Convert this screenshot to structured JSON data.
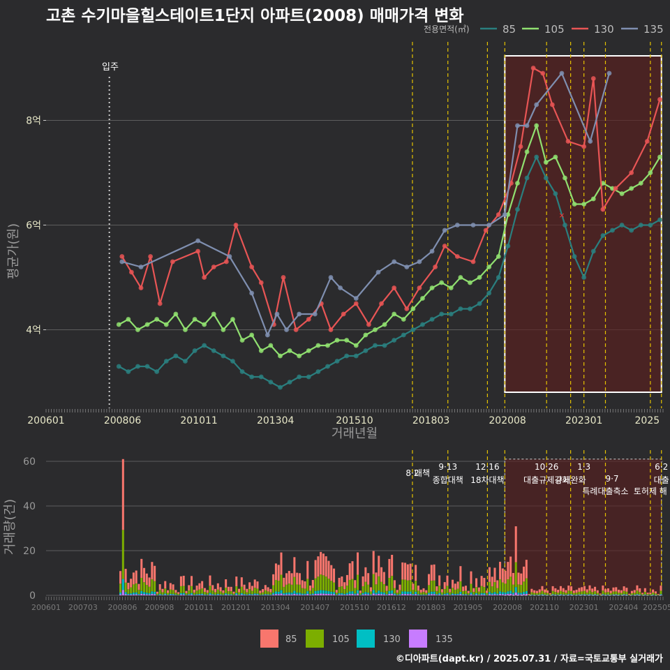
{
  "title": "고촌 수기마을힐스테이트1단지 아파트(2008) 매매가격 변화",
  "footer": "©디아파트(dapt.kr) / 2025.07.31 / 자료=국토교통부 실거래가",
  "legend": {
    "title": "전용면적(㎡)",
    "items": [
      {
        "name": "85",
        "color": "#2a7f7f",
        "bar_color": "#f8766d"
      },
      {
        "name": "105",
        "color": "#90e070",
        "bar_color": "#7cae00"
      },
      {
        "name": "130",
        "color": "#e85555",
        "bar_color": "#00bfc4"
      },
      {
        "name": "135",
        "color": "#7f8fb0",
        "bar_color": "#c77cff"
      }
    ]
  },
  "movein_label": "입주",
  "policies": [
    {
      "date": "2017.58",
      "date_label": "8·2",
      "name": "대책"
    },
    {
      "date": "2018.70",
      "date_label": "9·13",
      "name": "종합대책"
    },
    {
      "date": "2019.95",
      "date_label": "12·16",
      "name": "18차대책"
    },
    {
      "date": "2020.50",
      "date_label": "",
      "name": ""
    },
    {
      "date": "2021.82",
      "date_label": "10·26",
      "name": "대출규제강화"
    },
    {
      "date": "2022.58",
      "date_label": "",
      "name": "규제완화"
    },
    {
      "date": "2023.00",
      "date_label": "1·3",
      "name": ""
    },
    {
      "date": "2023.68",
      "date_label": "9·7",
      "name": "특례대출축소"
    },
    {
      "date": "2025.10",
      "date_label": "",
      "name": "토허제 해"
    },
    {
      "date": "2025.45",
      "date_label": "6·2",
      "name": "대출"
    }
  ],
  "chart_data": [
    {
      "type": "line",
      "title": "고촌 수기마을힐스테이트1단지 아파트(2008) 매매가격 변화",
      "xlabel": "거래년월",
      "ylabel": "평균가(원)",
      "xlim": [
        2006.0,
        2025.5
      ],
      "ylim": [
        2.5,
        9.5
      ],
      "x_ticks": [
        "200601",
        "200806",
        "201011",
        "201304",
        "201510",
        "201803",
        "202008",
        "202301",
        "2025"
      ],
      "y_ticks": [
        {
          "value": 4,
          "label": "4억"
        },
        {
          "value": 6,
          "label": "6억"
        },
        {
          "value": 8,
          "label": "8억"
        }
      ],
      "movein": 2008.0,
      "highlight_range": [
        2020.5,
        2025.45
      ],
      "series": [
        {
          "name": "135",
          "x": [
            2008.4,
            2009.0,
            2010.8,
            2011.8,
            2012.5,
            2013.0,
            2013.3,
            2013.6,
            2014.0,
            2014.5,
            2015.0,
            2015.3,
            2015.8,
            2016.5,
            2017.0,
            2017.4,
            2017.8,
            2018.2,
            2018.6,
            2019.0,
            2019.5,
            2020.0,
            2020.5,
            2020.9,
            2021.2,
            2021.5,
            2022.3,
            2023.2,
            2023.8
          ],
          "y": [
            5.3,
            5.2,
            5.7,
            5.4,
            4.7,
            3.9,
            4.3,
            4.0,
            4.3,
            4.3,
            5.0,
            4.8,
            4.6,
            5.1,
            5.3,
            5.2,
            5.3,
            5.5,
            5.9,
            6.0,
            6.0,
            6.0,
            6.2,
            7.9,
            7.9,
            8.3,
            8.9,
            7.6,
            8.9
          ]
        },
        {
          "name": "130",
          "x": [
            2008.4,
            2008.7,
            2009.0,
            2009.3,
            2009.6,
            2010.0,
            2010.8,
            2011.0,
            2011.3,
            2011.7,
            2012.0,
            2012.5,
            2012.8,
            2013.2,
            2013.5,
            2013.9,
            2014.3,
            2014.7,
            2015.0,
            2015.4,
            2015.8,
            2016.2,
            2016.6,
            2017.0,
            2017.4,
            2017.8,
            2018.3,
            2018.6,
            2019.0,
            2019.5,
            2019.9,
            2020.3,
            2020.7,
            2021.0,
            2021.4,
            2021.7,
            2022.0,
            2022.5,
            2023.0,
            2023.3,
            2023.6,
            2024.0,
            2024.5,
            2025.0,
            2025.4
          ],
          "y": [
            5.4,
            5.1,
            4.8,
            5.4,
            4.5,
            5.3,
            5.5,
            5.0,
            5.2,
            5.3,
            6.0,
            5.2,
            4.9,
            4.1,
            5.0,
            4.0,
            4.2,
            4.5,
            4.0,
            4.3,
            4.5,
            4.1,
            4.5,
            4.8,
            4.4,
            4.8,
            5.2,
            5.6,
            5.4,
            5.3,
            5.9,
            6.2,
            6.8,
            7.5,
            9.0,
            8.9,
            8.3,
            7.6,
            7.5,
            8.8,
            6.3,
            6.7,
            7.0,
            7.6,
            8.4
          ]
        },
        {
          "name": "105",
          "x": [
            2008.3,
            2008.6,
            2008.9,
            2009.2,
            2009.5,
            2009.8,
            2010.1,
            2010.4,
            2010.7,
            2011.0,
            2011.3,
            2011.6,
            2011.9,
            2012.2,
            2012.5,
            2012.8,
            2013.1,
            2013.4,
            2013.7,
            2014.0,
            2014.3,
            2014.6,
            2014.9,
            2015.2,
            2015.5,
            2015.8,
            2016.1,
            2016.4,
            2016.7,
            2017.0,
            2017.3,
            2017.6,
            2017.9,
            2018.2,
            2018.5,
            2018.8,
            2019.1,
            2019.4,
            2019.7,
            2020.0,
            2020.3,
            2020.6,
            2020.9,
            2021.2,
            2021.5,
            2021.8,
            2022.1,
            2022.4,
            2022.7,
            2023.0,
            2023.3,
            2023.6,
            2023.9,
            2024.2,
            2024.5,
            2024.8,
            2025.1,
            2025.4
          ],
          "y": [
            4.1,
            4.2,
            4.0,
            4.1,
            4.2,
            4.1,
            4.3,
            4.0,
            4.2,
            4.1,
            4.3,
            4.0,
            4.2,
            3.8,
            3.9,
            3.6,
            3.7,
            3.5,
            3.6,
            3.5,
            3.6,
            3.7,
            3.7,
            3.8,
            3.8,
            3.7,
            3.9,
            4.0,
            4.1,
            4.3,
            4.2,
            4.4,
            4.6,
            4.8,
            4.9,
            4.8,
            5.0,
            4.9,
            5.0,
            5.2,
            5.4,
            6.2,
            6.8,
            7.4,
            7.9,
            7.2,
            7.3,
            6.9,
            6.4,
            6.4,
            6.5,
            6.8,
            6.7,
            6.6,
            6.7,
            6.8,
            7.0,
            7.3
          ]
        },
        {
          "name": "85",
          "x": [
            2008.3,
            2008.6,
            2008.9,
            2009.2,
            2009.5,
            2009.8,
            2010.1,
            2010.4,
            2010.7,
            2011.0,
            2011.3,
            2011.6,
            2011.9,
            2012.2,
            2012.5,
            2012.8,
            2013.1,
            2013.4,
            2013.7,
            2014.0,
            2014.3,
            2014.6,
            2014.9,
            2015.2,
            2015.5,
            2015.8,
            2016.1,
            2016.4,
            2016.7,
            2017.0,
            2017.3,
            2017.6,
            2017.9,
            2018.2,
            2018.5,
            2018.8,
            2019.1,
            2019.4,
            2019.7,
            2020.0,
            2020.3,
            2020.6,
            2020.9,
            2021.2,
            2021.5,
            2021.8,
            2022.1,
            2022.4,
            2022.7,
            2023.0,
            2023.3,
            2023.6,
            2023.9,
            2024.2,
            2024.5,
            2024.8,
            2025.1,
            2025.4
          ],
          "y": [
            3.3,
            3.2,
            3.3,
            3.3,
            3.2,
            3.4,
            3.5,
            3.4,
            3.6,
            3.7,
            3.6,
            3.5,
            3.4,
            3.2,
            3.1,
            3.1,
            3.0,
            2.9,
            3.0,
            3.1,
            3.1,
            3.2,
            3.3,
            3.4,
            3.5,
            3.5,
            3.6,
            3.7,
            3.7,
            3.8,
            3.9,
            4.0,
            4.1,
            4.2,
            4.3,
            4.3,
            4.4,
            4.4,
            4.5,
            4.7,
            5.0,
            5.6,
            6.3,
            6.9,
            7.3,
            6.9,
            6.6,
            6.0,
            5.4,
            5.0,
            5.5,
            5.8,
            5.9,
            6.0,
            5.9,
            6.0,
            6.0,
            6.1
          ]
        }
      ]
    },
    {
      "type": "bar",
      "ylabel": "거래량(건)",
      "xlim": [
        2006.0,
        2025.5
      ],
      "ylim": [
        0,
        65
      ],
      "y_ticks": [
        0,
        20,
        40,
        60
      ],
      "x_ticks": [
        "200601",
        "200703",
        "200806",
        "200908",
        "201011",
        "201201",
        "201304",
        "201407",
        "201510",
        "201612",
        "201803",
        "201905",
        "202008",
        "202110",
        "202301",
        "202404",
        "202505"
      ],
      "stack_order": [
        "135",
        "130",
        "105",
        "85"
      ],
      "peak_month": {
        "x": 2008.4,
        "total": 61
      }
    }
  ]
}
